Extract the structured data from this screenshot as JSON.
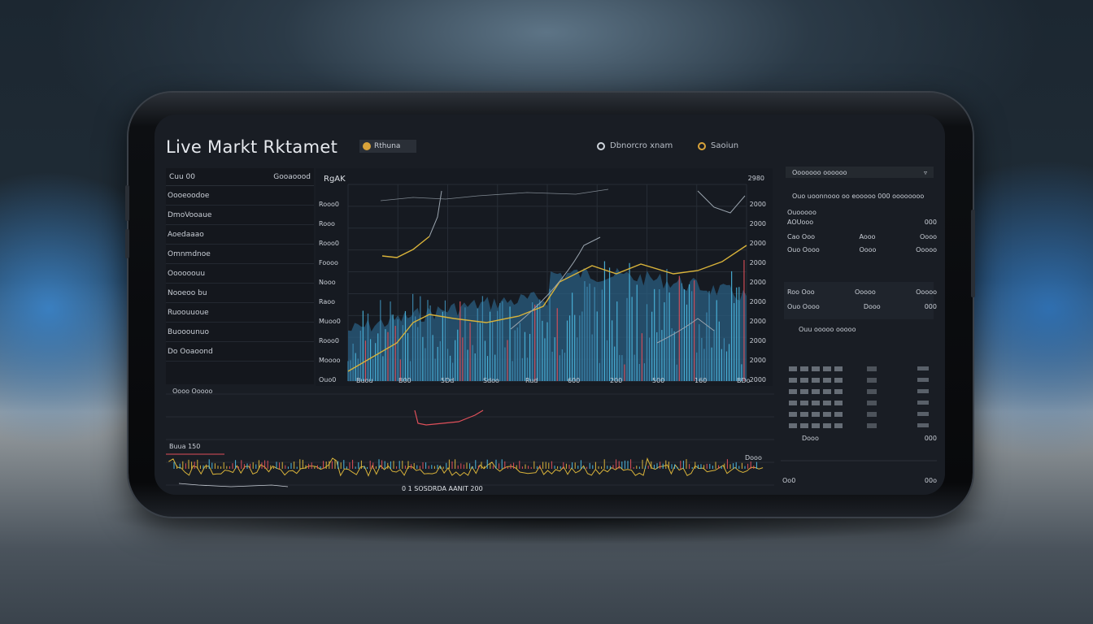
{
  "app": {
    "title": "Live Markt Rktamet",
    "badge": "Rthuna",
    "header_links": [
      {
        "label": "Dbnorcro xnam",
        "icon": "globe-icon"
      },
      {
        "label": "Saoiun",
        "icon": "bell-icon"
      }
    ]
  },
  "watchlist": {
    "header_left": "Cuu 00",
    "header_right": "Gooaoood",
    "items": [
      "Oooeoodoe",
      "DmoVooaue",
      "Aoedaaao",
      "Omnmdnoe",
      "Oooooouu",
      "Nooeoo bu",
      "Ruoouuoue",
      "Buooounuo",
      "Do Ooaoond"
    ]
  },
  "main_chart": {
    "label": "RgAK",
    "top_right_value": "2980",
    "ylabels": [
      "Rooo0",
      "Rooo",
      "Rooo0",
      "Foooo",
      "Nooo",
      "Raoo",
      "Muoo0",
      "Rooo0",
      "Moooo",
      "Ouo0"
    ],
    "rlabels": [
      "2000",
      "2000",
      "2000",
      "2000",
      "2000",
      "2000",
      "2000",
      "2000",
      "2000",
      "2000"
    ],
    "xlabels": [
      "Buou",
      "B00",
      "5Dd",
      "Sdoo",
      "Rud",
      "600",
      "200",
      "500",
      "160",
      "BDo"
    ],
    "colors": {
      "accent": "#4bb8e0",
      "line": "#d9b33a",
      "down": "#e0505a"
    }
  },
  "lower_panel": {
    "label_top": "Oooo Ooooo",
    "label_left": "Buua 150",
    "label_right": "Dooo",
    "ticker_text": "0  1 SOSDRDA   AANIT  200"
  },
  "side_panel": {
    "button_label": "Ooooooo oooooo",
    "line1": "Ouo uoonnooo oo eooooo 000 oooooooo",
    "rows": [
      {
        "left": "Ouooooo",
        "mid": "",
        "right": ""
      },
      {
        "left": "AOUooo",
        "mid": "",
        "right": "000"
      },
      {
        "left": "Cao Ooo",
        "mid": "Aooo",
        "right": "Oooo"
      },
      {
        "left": "Ouo Oooo",
        "mid": "Oooo",
        "right": "Ooooo"
      },
      {
        "left": "Roo Ooo",
        "mid": "Ooooo",
        "right": "Ooooo"
      },
      {
        "left": "Ouo Oooo",
        "mid": "Dooo",
        "right": "000"
      }
    ],
    "sub_header": "Ouu ooooo ooooo",
    "footer_left": "Dooo",
    "footer_right": "000",
    "bottom_left": "Oo0",
    "bottom_right": "00o"
  }
}
